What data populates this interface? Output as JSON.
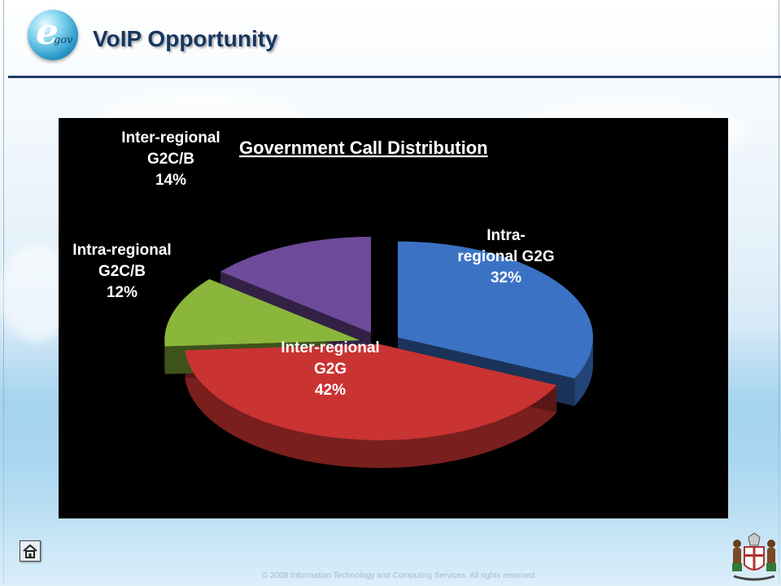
{
  "header": {
    "title": "VoIP Opportunity",
    "logo_letter": "e",
    "logo_suffix": "gov"
  },
  "footer": {
    "copyright": "© 2008 Information Technology and Computing Services. All rights reserved."
  },
  "icons": {
    "home": "home-icon",
    "crest": "coat-of-arms-icon",
    "logo": "egov-logo-icon"
  },
  "chart_data": {
    "type": "pie",
    "title": "Government Call Distribution",
    "slices": [
      {
        "label_lines": [
          "Intra-",
          "regional G2G"
        ],
        "label": "Intra-regional G2G",
        "value": 32,
        "value_label": "32%",
        "color": "#3b72c4",
        "exploded": true
      },
      {
        "label_lines": [
          "Inter-regional",
          "G2G"
        ],
        "label": "Inter-regional G2G",
        "value": 42,
        "value_label": "42%",
        "color": "#c93332",
        "exploded": false
      },
      {
        "label_lines": [
          "Intra-regional",
          "G2C/B"
        ],
        "label": "Intra-regional G2C/B",
        "value": 12,
        "value_label": "12%",
        "color": "#8ab63c",
        "exploded": true
      },
      {
        "label_lines": [
          "Inter-regional",
          "G2C/B"
        ],
        "label": "Inter-regional G2C/B",
        "value": 14,
        "value_label": "14%",
        "color": "#6e4a9a",
        "exploded": true
      }
    ],
    "label_color": "#ffffff",
    "background": "#000000"
  }
}
